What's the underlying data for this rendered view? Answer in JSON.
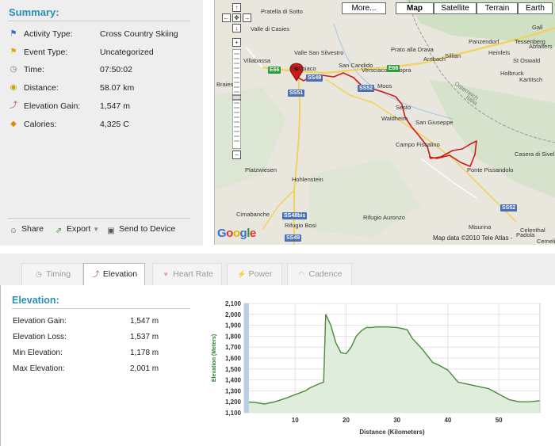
{
  "summary": {
    "title": "Summary:",
    "rows": [
      {
        "icon": "flag-blue-icon",
        "label": "Activity Type:",
        "value": "Cross Country Skiing"
      },
      {
        "icon": "flag-yellow-icon",
        "label": "Event Type:",
        "value": "Uncategorized"
      },
      {
        "icon": "clock-icon",
        "label": "Time:",
        "value": "07:50:02"
      },
      {
        "icon": "distance-icon",
        "label": "Distance:",
        "value": "58.07 km"
      },
      {
        "icon": "elevation-icon",
        "label": "Elevation Gain:",
        "value": "1,547 m"
      },
      {
        "icon": "calories-icon",
        "label": "Calories:",
        "value": "4,325 C"
      }
    ],
    "actions": {
      "share": "Share",
      "export": "Export",
      "send": "Send to Device"
    }
  },
  "map": {
    "types": [
      "More...",
      "Map",
      "Satellite",
      "Terrain",
      "Earth"
    ],
    "active_type": "Map",
    "labels": [
      "Pratella di Sotto",
      "Valle di Casies",
      "Villabassa",
      "Dobbiaco",
      "San Candido",
      "Versciaco di Sopra",
      "Sillian",
      "Panzendorf",
      "Tessenberg",
      "Heinfels",
      "St Oswald",
      "Holbruck",
      "Kartitsch",
      "Arnbach",
      "Prato alla Drava",
      "Sesto",
      "Moos",
      "Waldheim",
      "San Giuseppe",
      "Campo Fiscalino",
      "Ponte Pissandolo",
      "Casera di Sivella",
      "Platzwiesen",
      "Hohlenstein",
      "Cimabanche",
      "Rifugio Bosi",
      "Rifugio Auronzo",
      "Valle San Silvestro",
      "Braies",
      "Osterreich",
      "Italia",
      "Gall",
      "Abfalters",
      "Celenthal",
      "Misurina",
      "Padola",
      "Cemelic"
    ],
    "shields": [
      "E66",
      "E66",
      "SS49",
      "SS51",
      "SS52",
      "SS48bis",
      "SS49",
      "SS52"
    ],
    "attribution": "Map data ©2010 Tele Atlas -",
    "logo": "Google",
    "zoom_controls": {
      "plus": "+",
      "minus": "−"
    }
  },
  "tabs": [
    "Timing",
    "Elevation",
    "Heart Rate",
    "Power",
    "Cadence"
  ],
  "active_tab": "Elevation",
  "elevation": {
    "title": "Elevation:",
    "rows": [
      {
        "label": "Elevation Gain:",
        "value": "1,547 m"
      },
      {
        "label": "Elevation Loss:",
        "value": "1,537 m"
      },
      {
        "label": "Min Elevation:",
        "value": "1,178 m"
      },
      {
        "label": "Max Elevation:",
        "value": "2,001 m"
      }
    ]
  },
  "chart_data": {
    "type": "area",
    "xlabel": "Distance (Kilometers)",
    "ylabel": "Elevation (Meters)",
    "xticks": [
      10,
      20,
      30,
      40,
      50
    ],
    "yticks": [
      1100,
      1200,
      1300,
      1400,
      1500,
      1600,
      1700,
      1800,
      1900,
      2000,
      2100
    ],
    "xlim": [
      0,
      58.07
    ],
    "ylim": [
      1100,
      2100
    ],
    "grid": true,
    "x": [
      0,
      2,
      4,
      6,
      8,
      10,
      12,
      13,
      14,
      15,
      15.6,
      16,
      17,
      18,
      19,
      20,
      21,
      22,
      23,
      24,
      25,
      26,
      28,
      30,
      32,
      33,
      34,
      35,
      36,
      37,
      38,
      40,
      42,
      44,
      46,
      48,
      50,
      52,
      54,
      56,
      58
    ],
    "y": [
      1200,
      1195,
      1180,
      1200,
      1230,
      1265,
      1300,
      1330,
      1350,
      1370,
      1380,
      2001,
      1900,
      1740,
      1650,
      1640,
      1700,
      1800,
      1850,
      1880,
      1880,
      1885,
      1885,
      1880,
      1860,
      1780,
      1730,
      1680,
      1620,
      1560,
      1540,
      1490,
      1380,
      1360,
      1340,
      1320,
      1270,
      1220,
      1200,
      1200,
      1210
    ],
    "fill_color": "#dfeedc",
    "line_color": "#4a8a3a"
  }
}
